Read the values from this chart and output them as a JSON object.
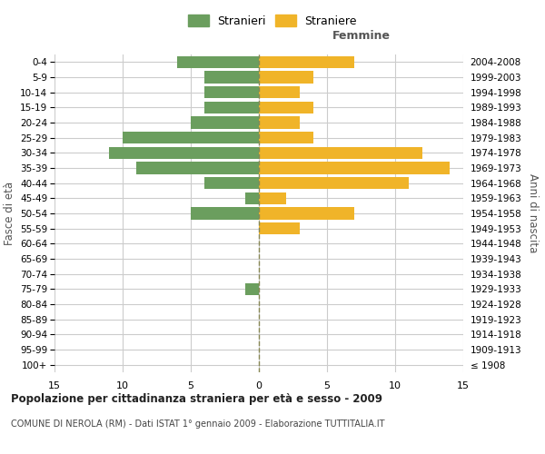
{
  "age_groups": [
    "100+",
    "95-99",
    "90-94",
    "85-89",
    "80-84",
    "75-79",
    "70-74",
    "65-69",
    "60-64",
    "55-59",
    "50-54",
    "45-49",
    "40-44",
    "35-39",
    "30-34",
    "25-29",
    "20-24",
    "15-19",
    "10-14",
    "5-9",
    "0-4"
  ],
  "birth_years": [
    "≤ 1908",
    "1909-1913",
    "1914-1918",
    "1919-1923",
    "1924-1928",
    "1929-1933",
    "1934-1938",
    "1939-1943",
    "1944-1948",
    "1949-1953",
    "1954-1958",
    "1959-1963",
    "1964-1968",
    "1969-1973",
    "1974-1978",
    "1979-1983",
    "1984-1988",
    "1989-1993",
    "1994-1998",
    "1999-2003",
    "2004-2008"
  ],
  "males": [
    0,
    0,
    0,
    0,
    0,
    1,
    0,
    0,
    0,
    0,
    5,
    1,
    4,
    9,
    11,
    10,
    5,
    4,
    4,
    4,
    6
  ],
  "females": [
    0,
    0,
    0,
    0,
    0,
    0,
    0,
    0,
    0,
    3,
    7,
    2,
    11,
    14,
    12,
    4,
    3,
    4,
    3,
    4,
    7
  ],
  "male_color": "#6b9e5e",
  "female_color": "#f0b429",
  "center_line_color": "#888855",
  "grid_color": "#cccccc",
  "background_color": "#ffffff",
  "title": "Popolazione per cittadinanza straniera per età e sesso - 2009",
  "subtitle": "COMUNE DI NEROLA (RM) - Dati ISTAT 1° gennaio 2009 - Elaborazione TUTTITALIA.IT",
  "xlabel_right": "Femmine",
  "ylabel_left": "Fasce di età",
  "ylabel_right": "Anni di nascita",
  "legend_male": "Stranieri",
  "legend_female": "Straniere",
  "xlim": 15,
  "bar_height": 0.8
}
